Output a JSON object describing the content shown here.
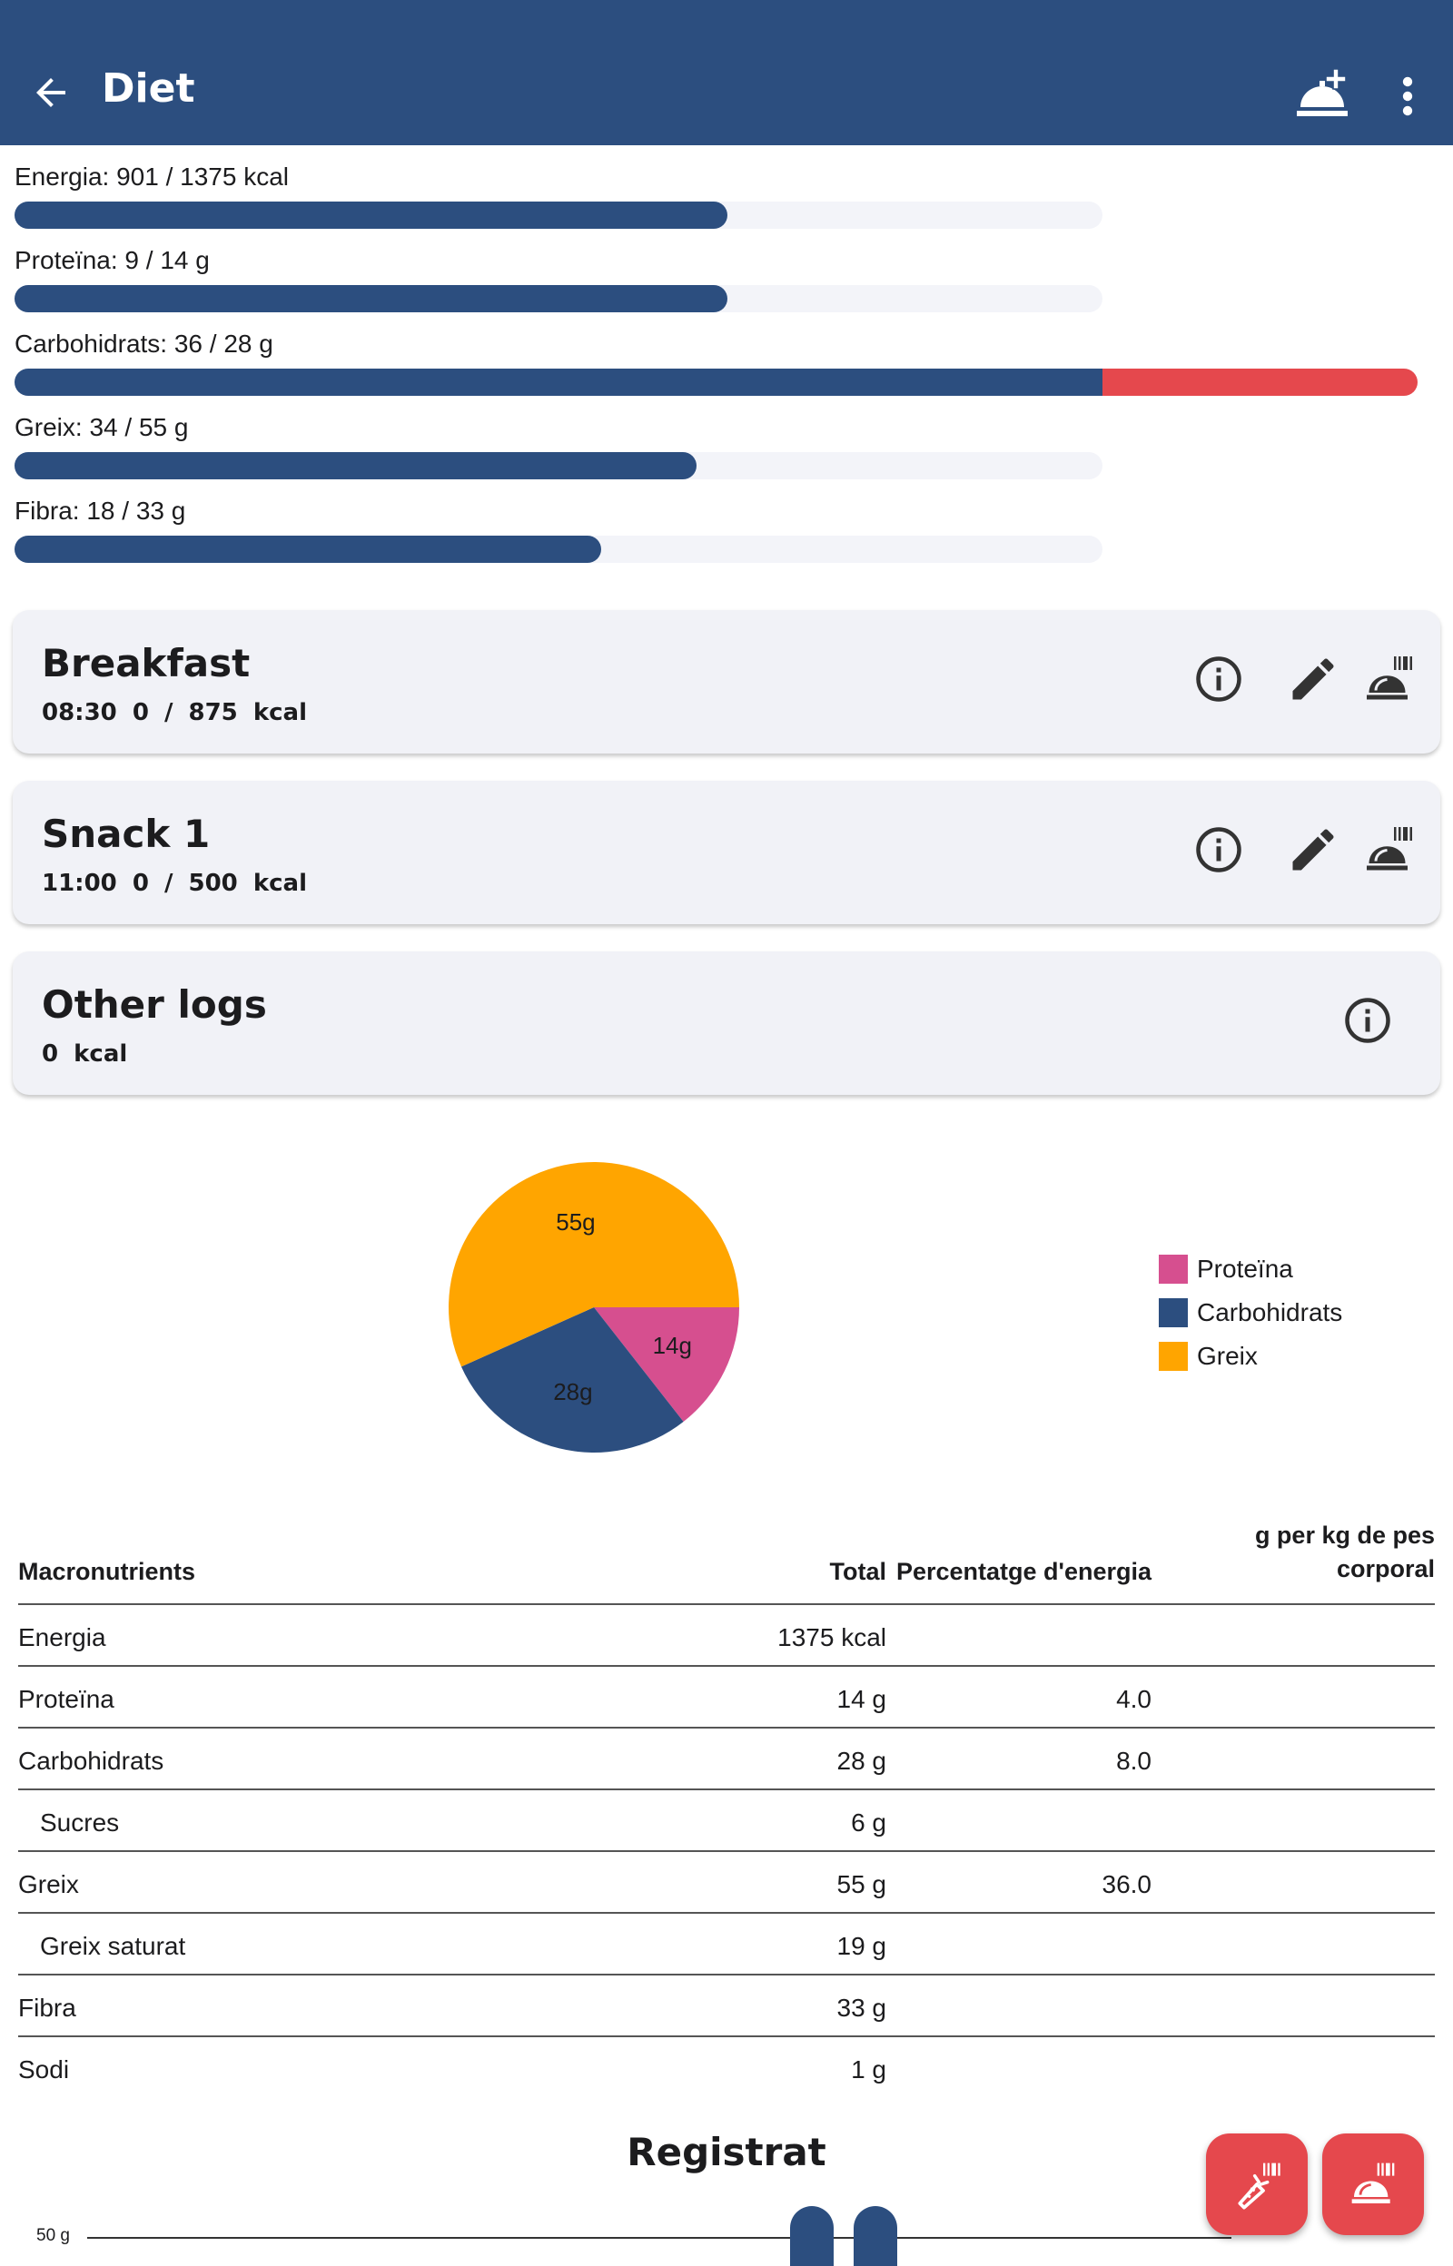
{
  "appbar": {
    "title": "Diet"
  },
  "icons": {
    "back": "arrow-left-icon",
    "add_meal": "room-service-plus-icon",
    "more": "more-vertical-icon",
    "info": "info-icon",
    "edit": "pencil-icon",
    "log_meal": "room-service-barcode-icon",
    "log_food": "carrot-barcode-icon"
  },
  "colors": {
    "primary": "#2c4e7f",
    "accent_red": "#e5484d",
    "protein": "#d64f8f",
    "carbs": "#2c4e7f",
    "fat": "#ffa500",
    "track": "#f3f4f9"
  },
  "progress": [
    {
      "label": "Energia: 901 / 1375 kcal",
      "fraction": 0.655
    },
    {
      "label": "Proteïna: 9 / 14 g",
      "fraction": 0.655
    },
    {
      "label": "Carbohidrats: 36 / 28 g",
      "fraction": 1.29
    },
    {
      "label": "Greix: 34 / 55 g",
      "fraction": 0.627
    },
    {
      "label": "Fibra: 18 / 33 g",
      "fraction": 0.539
    }
  ],
  "meals": [
    {
      "title": "Breakfast",
      "subtitle": "08:30   0 / 875 kcal"
    },
    {
      "title": "Snack 1",
      "subtitle": "11:00   0 / 500 kcal"
    },
    {
      "title": "Other logs",
      "subtitle": "0 kcal"
    }
  ],
  "chart_data": {
    "type": "pie",
    "slices": [
      {
        "name": "Proteïna",
        "value": 14,
        "label": "14g",
        "color": "#d64f8f"
      },
      {
        "name": "Carbohidrats",
        "value": 28,
        "label": "28g",
        "color": "#2c4e7f"
      },
      {
        "name": "Greix",
        "value": 55,
        "label": "55g",
        "color": "#ffa500"
      }
    ],
    "legend": [
      "Proteïna",
      "Carbohidrats",
      "Greix"
    ],
    "legend_position": "right"
  },
  "table": {
    "headers": {
      "name": "Macronutrients",
      "total": "Total",
      "pct": "Percentatge d'energia",
      "perkg_line1": "g per kg de pes",
      "perkg_line2": "corporal"
    },
    "rows": [
      {
        "name": "Energia",
        "total": "1375 kcal",
        "pct": "",
        "indent": false
      },
      {
        "name": "Proteïna",
        "total": "14 g",
        "pct": "4.0",
        "indent": false
      },
      {
        "name": "Carbohidrats",
        "total": "28 g",
        "pct": "8.0",
        "indent": false
      },
      {
        "name": "Sucres",
        "total": "6 g",
        "pct": "",
        "indent": true
      },
      {
        "name": "Greix",
        "total": "55 g",
        "pct": "36.0",
        "indent": false
      },
      {
        "name": "Greix saturat",
        "total": "19 g",
        "pct": "",
        "indent": true
      },
      {
        "name": "Fibra",
        "total": "33 g",
        "pct": "",
        "indent": false
      },
      {
        "name": "Sodi",
        "total": "1 g",
        "pct": "",
        "indent": false
      }
    ]
  },
  "registrat": {
    "title": "Registrat",
    "axis_label": "50 g"
  }
}
